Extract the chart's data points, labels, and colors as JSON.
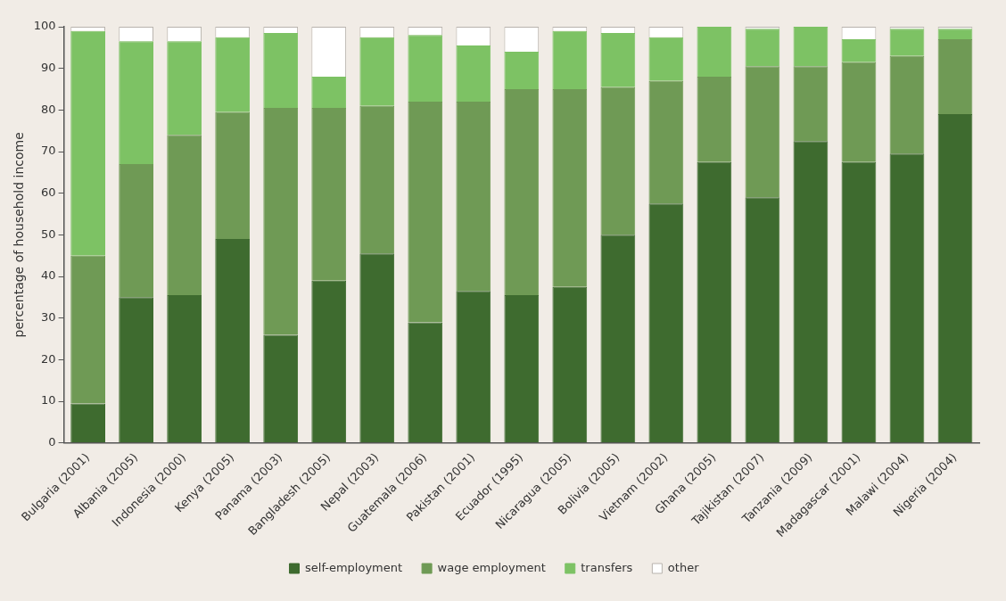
{
  "chart_data": {
    "type": "bar",
    "stacked": true,
    "ylabel": "percentage of household income",
    "categories": [
      "Bulgaria (2001)",
      "Albania (2005)",
      "Indonesia (2000)",
      "Kenya (2005)",
      "Panama (2003)",
      "Bangladesh (2005)",
      "Nepal (2003)",
      "Guatemala (2006)",
      "Pakistan (2001)",
      "Ecuador (1995)",
      "Nicaragua (2005)",
      "Bolivia (2005)",
      "Vietnam (2002)",
      "Ghana (2005)",
      "Tajikistan (2007)",
      "Tanzania (2009)",
      "Madagascar (2001)",
      "Malawi (2004)",
      "Nigeria (2004)"
    ],
    "series": [
      {
        "name": "self-employment",
        "color": "#3e6b2f",
        "values": [
          9.5,
          35,
          35.5,
          49,
          26,
          39,
          45.5,
          29,
          36.5,
          35.5,
          37.5,
          50,
          57.5,
          67.5,
          59,
          72.5,
          67.5,
          69.5,
          79
        ]
      },
      {
        "name": "wage employment",
        "color": "#6f9a55",
        "values": [
          35.5,
          32,
          38.5,
          30.5,
          54.5,
          41.5,
          35.5,
          53,
          45.5,
          49.5,
          47.5,
          35.5,
          29.5,
          20.5,
          31.5,
          18,
          24,
          23.5,
          18
        ]
      },
      {
        "name": "transfers",
        "color": "#7dc264",
        "values": [
          54,
          29.5,
          22.5,
          18,
          18,
          7.5,
          16.5,
          16,
          13.5,
          9,
          14,
          13,
          10.5,
          12,
          9,
          9.5,
          5.5,
          6.5,
          2.5
        ]
      },
      {
        "name": "other",
        "color": "#ffffff",
        "values": [
          1,
          3.5,
          3.5,
          2.5,
          1.5,
          12,
          2.5,
          2,
          4.5,
          6,
          1,
          1.5,
          2.5,
          0,
          0.5,
          0,
          3,
          0.5,
          0.5
        ]
      }
    ],
    "ylim": [
      0,
      100
    ],
    "yticks": [
      0,
      10,
      20,
      30,
      40,
      50,
      60,
      70,
      80,
      90,
      100
    ],
    "grid": false,
    "legend": "bottom"
  }
}
